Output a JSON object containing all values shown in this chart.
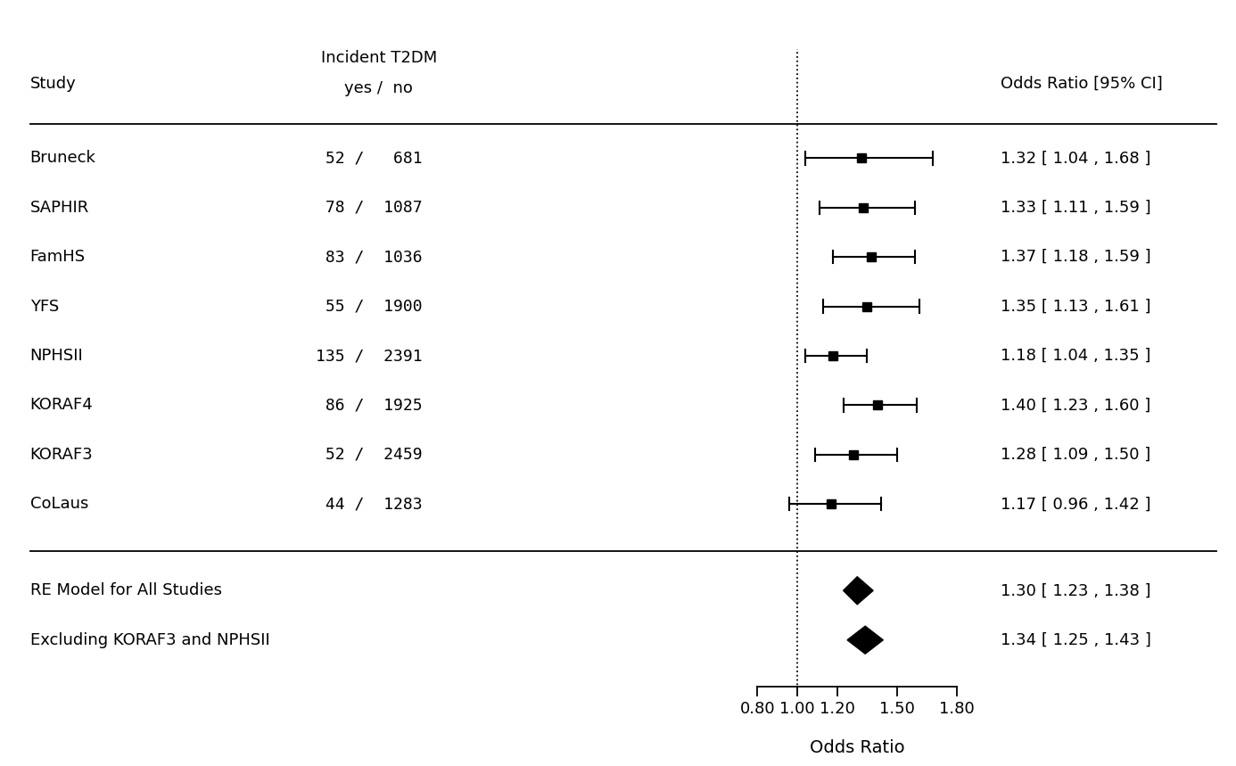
{
  "studies": [
    "Bruneck",
    "SAPHIR",
    "FamHS",
    "YFS",
    "NPHSII",
    "KORAF4",
    "KORAF3",
    "CoLaus"
  ],
  "yes_counts": [
    52,
    78,
    83,
    55,
    135,
    86,
    52,
    44
  ],
  "no_counts": [
    681,
    1087,
    1036,
    1900,
    2391,
    1925,
    2459,
    1283
  ],
  "or": [
    1.32,
    1.33,
    1.37,
    1.35,
    1.18,
    1.4,
    1.28,
    1.17
  ],
  "ci_low": [
    1.04,
    1.11,
    1.18,
    1.13,
    1.04,
    1.23,
    1.09,
    0.96
  ],
  "ci_high": [
    1.68,
    1.59,
    1.59,
    1.61,
    1.35,
    1.6,
    1.5,
    1.42
  ],
  "ci_text": [
    "1.32 [ 1.04 , 1.68 ]",
    "1.33 [ 1.11 , 1.59 ]",
    "1.37 [ 1.18 , 1.59 ]",
    "1.35 [ 1.13 , 1.61 ]",
    "1.18 [ 1.04 , 1.35 ]",
    "1.40 [ 1.23 , 1.60 ]",
    "1.28 [ 1.09 , 1.50 ]",
    "1.17 [ 0.96 , 1.42 ]"
  ],
  "summary_labels": [
    "RE Model for All Studies",
    "Excluding KORAF3 and NPHSII"
  ],
  "summary_or": [
    1.3,
    1.34
  ],
  "summary_ci_low": [
    1.23,
    1.25
  ],
  "summary_ci_high": [
    1.38,
    1.43
  ],
  "summary_ci_text": [
    "1.30 [ 1.23 , 1.38 ]",
    "1.34 [ 1.25 , 1.43 ]"
  ],
  "xmin": 0.75,
  "xmax": 1.92,
  "xticks": [
    0.8,
    1.0,
    1.2,
    1.5,
    1.8
  ],
  "xtick_labels": [
    "0.80",
    "1.00",
    "1.20",
    "1.50",
    "1.80"
  ],
  "xref": 1.0,
  "header_study": "Study",
  "header_t2dm_line1": "Incident T2DM",
  "header_t2dm_line2": "yes /  no",
  "header_ci": "Odds Ratio [95% CI]",
  "xlabel": "Odds Ratio",
  "fig_width": 13.86,
  "fig_height": 8.59,
  "bg_color": "#ffffff",
  "font_size": 13,
  "header_font_size": 13
}
